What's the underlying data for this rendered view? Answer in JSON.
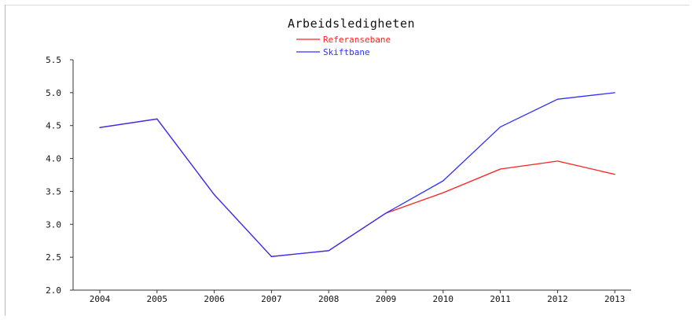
{
  "chart_data": {
    "type": "line",
    "title": "Arbeidsledigheten",
    "xlabel": "",
    "ylabel": "",
    "categories": [
      "2004",
      "2005",
      "2006",
      "2007",
      "2008",
      "2009",
      "2010",
      "2011",
      "2012",
      "2013"
    ],
    "y_ticks": [
      "2.0",
      "2.5",
      "3.0",
      "3.5",
      "4.0",
      "4.5",
      "5.0",
      "5.5"
    ],
    "ylim": [
      2.0,
      5.5
    ],
    "grid": false,
    "legend_position": "top-center",
    "series": [
      {
        "name": "Referansebane",
        "color": "#ff2020",
        "values": [
          4.47,
          4.6,
          3.45,
          2.51,
          2.6,
          3.17,
          3.48,
          3.84,
          3.96,
          3.76
        ]
      },
      {
        "name": "Skiftbane",
        "color": "#3030ff",
        "values": [
          4.47,
          4.6,
          3.45,
          2.51,
          2.6,
          3.17,
          3.66,
          4.48,
          4.9,
          5.0
        ]
      }
    ]
  }
}
